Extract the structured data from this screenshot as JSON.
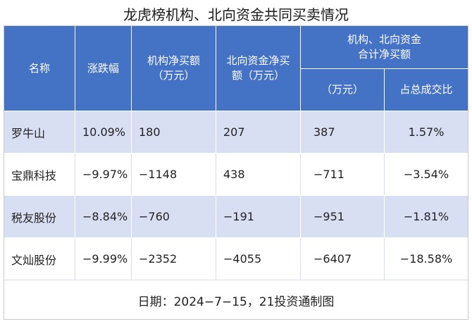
{
  "title": "龙虎榜机构、北向资金共同买卖情况",
  "header": {
    "name": "名称",
    "change": "涨跌幅",
    "inst_net": "机构净买额\n（万元）",
    "north_net": "北向资金净买\n额（万元）",
    "combined_group": "机构、北向资金\n合计净买额",
    "combined_amount": "（万元）",
    "combined_ratio": "占总成交比"
  },
  "rows": [
    {
      "name": "罗牛山",
      "change": "10.09%",
      "inst_net": "180",
      "north_net": "207",
      "combined": "387",
      "ratio": "1.57%"
    },
    {
      "name": "宝鼎科技",
      "change": "−9.97%",
      "inst_net": "−1148",
      "north_net": "438",
      "combined": "−711",
      "ratio": "−3.54%"
    },
    {
      "name": "税友股份",
      "change": "−8.84%",
      "inst_net": "−760",
      "north_net": "−191",
      "combined": "−951",
      "ratio": "−1.81%"
    },
    {
      "name": "文灿股份",
      "change": "−9.99%",
      "inst_net": "−2352",
      "north_net": "−4055",
      "combined": "−6407",
      "ratio": "−18.58%"
    }
  ],
  "footer": "日期：2024−7−15，21投资通制图",
  "colors": {
    "header_bg": "#4472c4",
    "band_bg": "#d9dff3"
  }
}
